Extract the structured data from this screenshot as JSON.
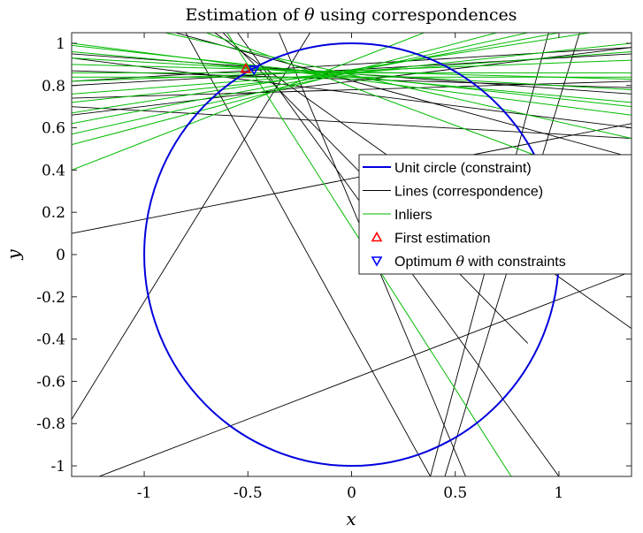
{
  "chart_data": {
    "type": "line",
    "title_prefix": "Estimation of ",
    "title_symbol": "θ",
    "title_suffix": " using correspondences",
    "xlabel": "x",
    "ylabel": "y",
    "xlim": [
      -1.35,
      1.35
    ],
    "ylim": [
      -1.05,
      1.05
    ],
    "x_ticks": [
      -1,
      -0.5,
      0,
      0.5,
      1
    ],
    "x_tick_labels": [
      "-1",
      "-0.5",
      "0",
      "0.5",
      "1"
    ],
    "y_ticks": [
      1,
      0.8,
      0.6,
      0.4,
      0.2,
      0,
      -0.2,
      -0.4,
      -0.6,
      -0.8,
      -1
    ],
    "y_tick_labels": [
      "1",
      "0.8",
      "0.6",
      "0.4",
      "0.2",
      "0",
      "-0.2",
      "-0.4",
      "-0.6",
      "-0.8",
      "-1"
    ],
    "grid": false,
    "legend_position": "right",
    "colors": {
      "circle": "#0000dd",
      "lines": "#000000",
      "inliers": "#00bb00",
      "first_estimation": "#ff0000",
      "optimum": "#0000ff"
    },
    "legend": [
      {
        "key": "circle",
        "label": "Unit circle (constraint)"
      },
      {
        "key": "lines",
        "label": "Lines (correspondence)"
      },
      {
        "key": "inliers",
        "label": "Inliers"
      },
      {
        "key": "first",
        "label": "First estimation"
      },
      {
        "key": "optimum",
        "label": "Optimum",
        "symbol": "θ",
        "suffix": " with constraints"
      }
    ],
    "circle": {
      "center": [
        0,
        0
      ],
      "radius": 1
    },
    "first_estimation": {
      "x": -0.51,
      "y": 0.88
    },
    "optimum": {
      "x": -0.47,
      "y": 0.875
    },
    "lines_correspondence": [
      [
        [
          -1.35,
          0.82
        ],
        [
          1.35,
          0.98
        ]
      ],
      [
        [
          -1.35,
          0.87
        ],
        [
          1.35,
          0.79
        ]
      ],
      [
        [
          -1.35,
          0.66
        ],
        [
          1.35,
          0.98
        ]
      ],
      [
        [
          -1.35,
          0.93
        ],
        [
          1.35,
          0.6
        ]
      ],
      [
        [
          -1.35,
          0.74
        ],
        [
          1.35,
          0.82
        ]
      ],
      [
        [
          -1.35,
          0.8
        ],
        [
          1.35,
          0.95
        ]
      ],
      [
        [
          -1.35,
          0.95
        ],
        [
          1.35,
          0.76
        ]
      ],
      [
        [
          -1.35,
          0.7
        ],
        [
          1.35,
          0.55
        ]
      ],
      [
        [
          -0.8,
          1.05
        ],
        [
          0.38,
          -1.05
        ]
      ],
      [
        [
          -0.62,
          1.05
        ],
        [
          0.85,
          -0.42
        ]
      ],
      [
        [
          -0.55,
          1.05
        ],
        [
          1.0,
          -1.05
        ]
      ],
      [
        [
          -0.2,
          1.05
        ],
        [
          -1.35,
          -0.78
        ]
      ],
      [
        [
          -0.66,
          1.05
        ],
        [
          1.35,
          -0.35
        ]
      ],
      [
        [
          -0.35,
          1.05
        ],
        [
          0.55,
          -1.05
        ]
      ],
      [
        [
          -1.35,
          0.1
        ],
        [
          1.35,
          0.62
        ]
      ],
      [
        [
          -1.35,
          -1.1
        ],
        [
          1.35,
          -0.08
        ]
      ],
      [
        [
          1.1,
          1.05
        ],
        [
          0.45,
          -1.05
        ]
      ],
      [
        [
          0.95,
          1.05
        ],
        [
          0.38,
          -1.05
        ]
      ],
      [
        [
          -0.85,
          1.05
        ],
        [
          1.35,
          0.46
        ]
      ]
    ],
    "lines_inliers": [
      [
        [
          -1.35,
          0.4
        ],
        [
          0.35,
          1.05
        ]
      ],
      [
        [
          -1.35,
          0.52
        ],
        [
          0.7,
          1.05
        ]
      ],
      [
        [
          -1.35,
          0.57
        ],
        [
          0.85,
          1.05
        ]
      ],
      [
        [
          -1.35,
          0.62
        ],
        [
          1.0,
          1.05
        ]
      ],
      [
        [
          -1.35,
          0.67
        ],
        [
          1.15,
          1.05
        ]
      ],
      [
        [
          -1.35,
          0.72
        ],
        [
          1.35,
          1.0
        ]
      ],
      [
        [
          -1.35,
          0.76
        ],
        [
          1.35,
          0.96
        ]
      ],
      [
        [
          -1.35,
          0.82
        ],
        [
          1.35,
          0.92
        ]
      ],
      [
        [
          -1.35,
          0.86
        ],
        [
          1.35,
          0.86
        ]
      ],
      [
        [
          -1.35,
          0.9
        ],
        [
          1.35,
          0.83
        ]
      ],
      [
        [
          -1.35,
          0.93
        ],
        [
          1.35,
          0.78
        ]
      ],
      [
        [
          -1.35,
          0.96
        ],
        [
          1.35,
          0.72
        ]
      ],
      [
        [
          -1.35,
          1.0
        ],
        [
          1.35,
          0.66
        ]
      ],
      [
        [
          -0.9,
          1.05
        ],
        [
          1.35,
          0.55
        ]
      ],
      [
        [
          -1.35,
          0.99
        ],
        [
          1.35,
          0.7
        ]
      ],
      [
        [
          -1.35,
          0.84
        ],
        [
          1.35,
          0.84
        ]
      ],
      [
        [
          -0.6,
          1.05
        ],
        [
          0.77,
          -1.05
        ]
      ],
      [
        [
          -0.7,
          1.05
        ],
        [
          1.35,
          0.3
        ]
      ]
    ]
  }
}
